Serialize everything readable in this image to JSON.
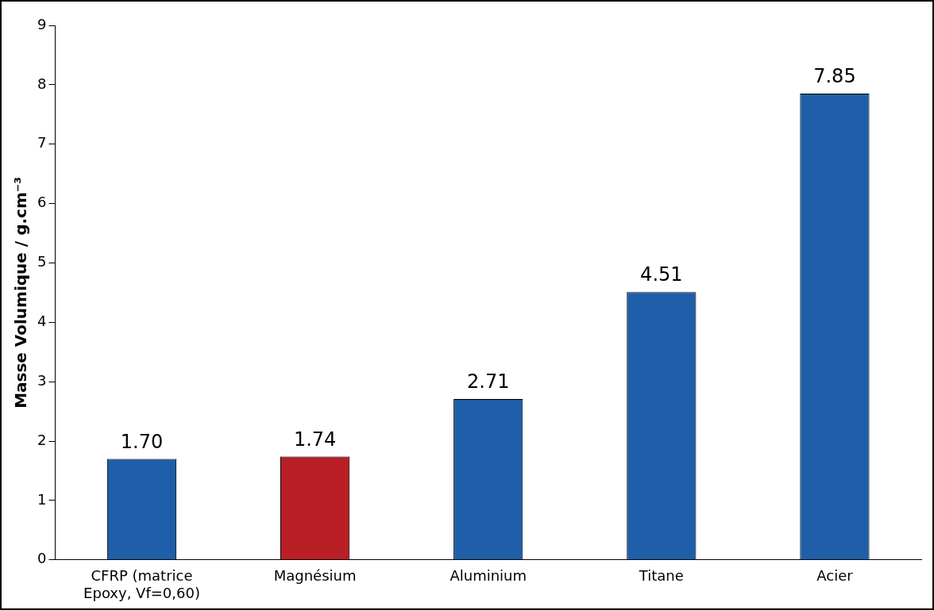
{
  "chart_data": {
    "type": "bar",
    "ylabel": "Masse Volumique / g.cm⁻³",
    "categories": [
      "CFRP (matrice Epoxy, Vf=0,60)",
      "Magnésium",
      "Aluminium",
      "Titane",
      "Acier"
    ],
    "values": [
      1.7,
      1.74,
      2.71,
      4.51,
      7.85
    ],
    "value_labels": [
      "1.70",
      "1.74",
      "2.71",
      "4.51",
      "7.85"
    ],
    "colors": [
      "#1f5ea8",
      "#b82025",
      "#1f5ea8",
      "#1f5ea8",
      "#1f5ea8"
    ],
    "ylim": [
      0,
      9
    ],
    "yticks": [
      0,
      1,
      2,
      3,
      4,
      5,
      6,
      7,
      8,
      9
    ],
    "grid": false,
    "legend": false
  }
}
